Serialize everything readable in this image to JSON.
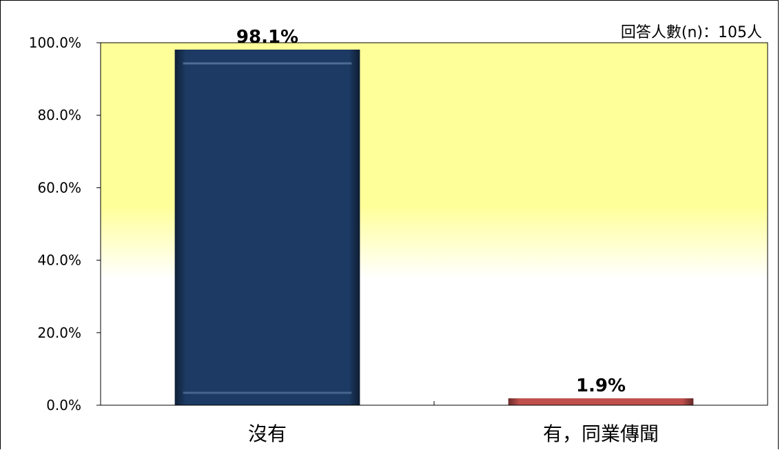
{
  "note": "回答人數(n)：105人",
  "colors": {
    "plot_top": "#ffff99",
    "plot_bottom": "#ffffff",
    "bar_1": "#1c3a63",
    "bar_2": "#c0504d"
  },
  "chart_data": {
    "type": "bar",
    "categories": [
      "沒有",
      "有，同業傳聞"
    ],
    "values": [
      98.1,
      1.9
    ],
    "data_labels": [
      "98.1%",
      "1.9%"
    ],
    "ylim": [
      0,
      100
    ],
    "yticks": [
      0,
      20,
      40,
      60,
      80,
      100
    ],
    "ytick_labels": [
      "0.0%",
      "20.0%",
      "40.0%",
      "60.0%",
      "80.0%",
      "100.0%"
    ],
    "grid": false,
    "legend": "none"
  }
}
